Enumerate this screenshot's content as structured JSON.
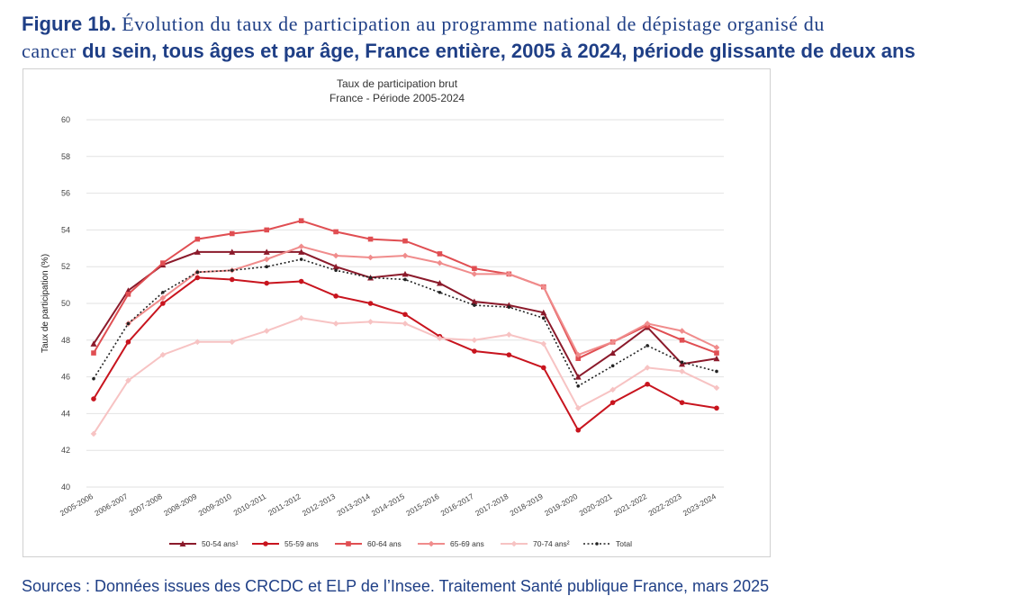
{
  "caption": {
    "label": "Figure 1b.",
    "line1_text": " Évolution du taux de participation au programme national de dépistage organisé du",
    "line2_text": "cancer",
    "line2_bold": " du sein, tous âges et par âge, France entière, 2005 à 2024, période glissante de deux ans"
  },
  "source": "Sources : Données issues des CRCDC et ELP de l’Insee. Traitement Santé publique France, mars 2025",
  "chart_data": {
    "type": "line",
    "title": "Taux de participation brut",
    "subtitle": "France - Période 2005-2024",
    "xlabel": "",
    "ylabel": "Taux de participation (%)",
    "ylim": [
      40,
      60
    ],
    "yticks": [
      40,
      42,
      44,
      46,
      48,
      50,
      52,
      54,
      56,
      58,
      60
    ],
    "grid": true,
    "legend": "bottom",
    "categories": [
      "2005-2006",
      "2006-2007",
      "2007-2008",
      "2008-2009",
      "2009-2010",
      "2010-2011",
      "2011-2012",
      "2012-2013",
      "2013-2014",
      "2014-2015",
      "2015-2016",
      "2016-2017",
      "2017-2018",
      "2018-2019",
      "2019-2020",
      "2020-2021",
      "2021-2022",
      "2022-2023",
      "2023-2024"
    ],
    "series": [
      {
        "name": "50-54 ans¹",
        "color": "#8b1a2b",
        "marker": "triangle",
        "dash": false,
        "values": [
          47.8,
          50.7,
          52.1,
          52.8,
          52.8,
          52.8,
          52.8,
          52.0,
          51.4,
          51.6,
          51.1,
          50.1,
          49.9,
          49.5,
          46.0,
          47.3,
          48.7,
          46.7,
          47.0
        ]
      },
      {
        "name": "55-59 ans",
        "color": "#c8141e",
        "marker": "circle",
        "dash": false,
        "values": [
          44.8,
          47.9,
          50.0,
          51.4,
          51.3,
          51.1,
          51.2,
          50.4,
          50.0,
          49.4,
          48.2,
          47.4,
          47.2,
          46.5,
          43.1,
          44.6,
          45.6,
          44.6,
          44.3
        ]
      },
      {
        "name": "60-64 ans",
        "color": "#e04e52",
        "marker": "square",
        "dash": false,
        "values": [
          47.3,
          50.5,
          52.2,
          53.5,
          53.8,
          54.0,
          54.5,
          53.9,
          53.5,
          53.4,
          52.7,
          51.9,
          51.6,
          50.9,
          47.0,
          47.9,
          48.8,
          48.0,
          47.3
        ]
      },
      {
        "name": "65-69 ans",
        "color": "#f08c8c",
        "marker": "diamond",
        "dash": false,
        "values": [
          null,
          48.9,
          50.3,
          51.7,
          51.8,
          52.4,
          53.1,
          52.6,
          52.5,
          52.6,
          52.2,
          51.6,
          51.6,
          50.9,
          47.2,
          47.9,
          48.9,
          48.5,
          47.6
        ]
      },
      {
        "name": "70-74 ans²",
        "color": "#f7c3c3",
        "marker": "diamond",
        "dash": false,
        "values": [
          42.9,
          45.8,
          47.2,
          47.9,
          47.9,
          48.5,
          49.2,
          48.9,
          49.0,
          48.9,
          48.1,
          48.0,
          48.3,
          47.8,
          44.3,
          45.3,
          46.5,
          46.3,
          45.4
        ]
      },
      {
        "name": "Total",
        "color": "#222222",
        "marker": "dot",
        "dash": true,
        "values": [
          45.9,
          48.9,
          50.6,
          51.7,
          51.8,
          52.0,
          52.4,
          51.8,
          51.4,
          51.3,
          50.6,
          49.9,
          49.8,
          49.2,
          45.5,
          46.6,
          47.7,
          46.8,
          46.3
        ]
      }
    ]
  }
}
